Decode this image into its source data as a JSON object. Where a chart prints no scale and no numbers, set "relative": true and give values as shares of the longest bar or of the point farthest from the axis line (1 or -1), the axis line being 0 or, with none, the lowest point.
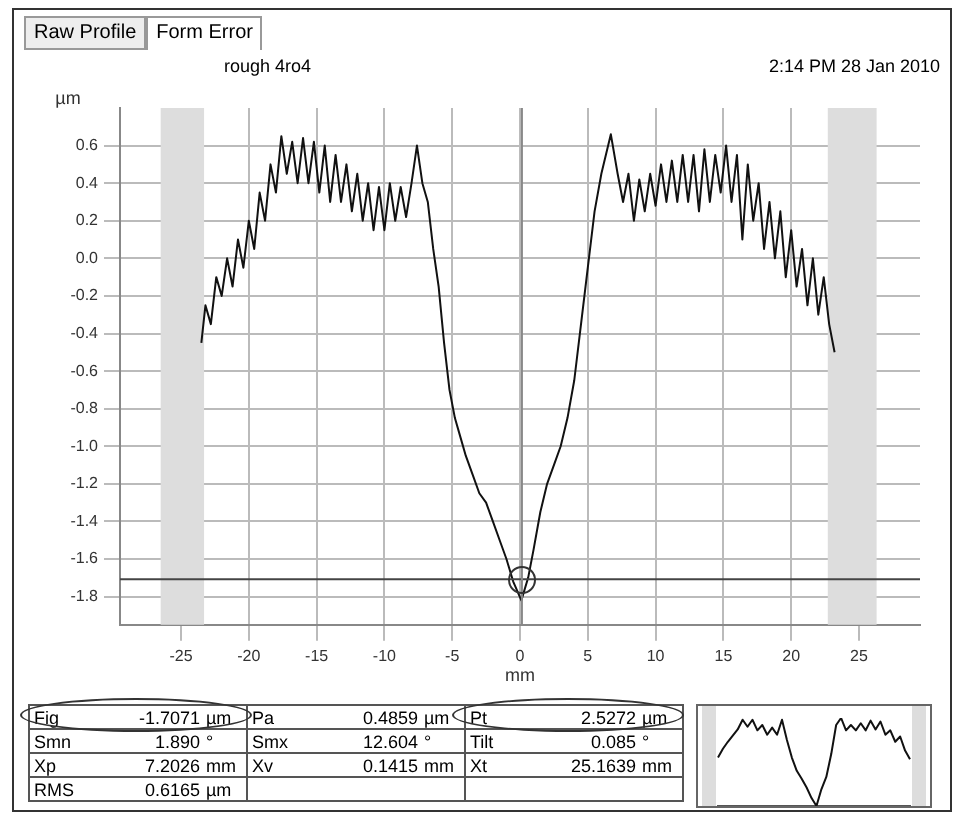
{
  "chart_data": [
    {
      "type": "other",
      "annotations": [
        "Raw Profile",
        "Form Error"
      ]
    },
    {
      "type": "line",
      "title": "rough 4ro4",
      "subtitle": "2:14 PM 28 Jan 2010",
      "xlabel": "mm",
      "ylabel": "µm",
      "x": [
        -23.5,
        -23.2,
        -22.8,
        -22.4,
        -22,
        -21.6,
        -21.2,
        -20.8,
        -20.4,
        -20,
        -19.6,
        -19.2,
        -18.8,
        -18.4,
        -18,
        -17.6,
        -17.2,
        -16.8,
        -16.4,
        -16,
        -15.6,
        -15.2,
        -14.8,
        -14.4,
        -14,
        -13.6,
        -13.2,
        -12.8,
        -12.4,
        -12,
        -11.6,
        -11.2,
        -10.8,
        -10.4,
        -10,
        -9.6,
        -9.2,
        -8.8,
        -8.4,
        -8,
        -7.6,
        -7.2,
        -6.8,
        -6.4,
        -6,
        -5.6,
        -5.2,
        -4.8,
        -4.4,
        -4,
        -3.5,
        -3,
        -2.5,
        -2,
        -1.5,
        -1,
        -0.5,
        0.1,
        0.6,
        1,
        1.5,
        2,
        2.5,
        3,
        3.5,
        4,
        4.5,
        5,
        5.5,
        6,
        6.7,
        7.2,
        7.6,
        8,
        8.4,
        8.8,
        9.2,
        9.6,
        10,
        10.4,
        10.8,
        11.2,
        11.6,
        12,
        12.4,
        12.8,
        13.2,
        13.6,
        14,
        14.4,
        14.8,
        15.2,
        15.6,
        16,
        16.4,
        16.8,
        17.2,
        17.6,
        18,
        18.4,
        18.8,
        19.2,
        19.6,
        20,
        20.4,
        20.8,
        21.2,
        21.6,
        22,
        22.4,
        22.8,
        23.2
      ],
      "series": [
        {
          "color": "#111111",
          "values": [
            -0.45,
            -0.25,
            -0.35,
            -0.1,
            -0.2,
            0.0,
            -0.15,
            0.1,
            -0.05,
            0.2,
            0.05,
            0.35,
            0.2,
            0.5,
            0.35,
            0.65,
            0.45,
            0.62,
            0.4,
            0.64,
            0.4,
            0.62,
            0.35,
            0.6,
            0.3,
            0.55,
            0.3,
            0.5,
            0.25,
            0.45,
            0.2,
            0.4,
            0.15,
            0.38,
            0.15,
            0.4,
            0.2,
            0.38,
            0.22,
            0.4,
            0.6,
            0.4,
            0.3,
            0.05,
            -0.15,
            -0.45,
            -0.7,
            -0.85,
            -0.95,
            -1.05,
            -1.15,
            -1.25,
            -1.3,
            -1.4,
            -1.5,
            -1.6,
            -1.72,
            -1.82,
            -1.7,
            -1.55,
            -1.35,
            -1.2,
            -1.1,
            -1.0,
            -0.85,
            -0.65,
            -0.35,
            -0.05,
            0.25,
            0.45,
            0.66,
            0.45,
            0.3,
            0.45,
            0.2,
            0.42,
            0.25,
            0.45,
            0.28,
            0.5,
            0.3,
            0.52,
            0.3,
            0.55,
            0.3,
            0.55,
            0.25,
            0.58,
            0.3,
            0.55,
            0.35,
            0.6,
            0.3,
            0.55,
            0.1,
            0.5,
            0.2,
            0.4,
            0.05,
            0.3,
            0.0,
            0.25,
            -0.1,
            0.15,
            -0.15,
            0.05,
            -0.25,
            0.0,
            -0.3,
            -0.1,
            -0.35,
            -0.5
          ]
        }
      ],
      "xlim": [
        -29.5,
        29.5
      ],
      "xticks": [
        -25,
        -20,
        -15,
        -10,
        -5,
        0,
        5,
        10,
        15,
        20,
        25
      ],
      "ylim": [
        -1.95,
        0.8
      ],
      "yticks": [
        -1.8,
        -1.6,
        -1.4,
        -1.2,
        {
          "value": -1,
          "label": "-1.0"
        },
        -0.8,
        -0.6,
        -0.4,
        -0.2,
        {
          "value": 0,
          "label": "0.0"
        },
        0.2,
        0.4,
        0.6
      ],
      "grid": true,
      "legend": false,
      "marker": "none",
      "line_style": "solid",
      "ref_lines": [
        {
          "axis": "y",
          "value": -1.7071,
          "color": "#444444"
        },
        {
          "axis": "x",
          "value": 0.1415,
          "color": "#888888"
        }
      ],
      "bands": [
        {
          "axis": "x",
          "from": -26.5,
          "to": -23.3,
          "color": "#dddddd"
        },
        {
          "axis": "x",
          "from": 22.7,
          "to": 26.3,
          "color": "#dddddd"
        }
      ]
    },
    {
      "type": "line",
      "relative": true,
      "marker": "none",
      "line_style": "solid",
      "categories": [
        null,
        null,
        null,
        null,
        null,
        null,
        null,
        null,
        null,
        null,
        null,
        null,
        null,
        null,
        null,
        null,
        null,
        null,
        null,
        null,
        null,
        null,
        null,
        null,
        null,
        null,
        null,
        null,
        null,
        null,
        null,
        null,
        null,
        null,
        null,
        null,
        null,
        null,
        null,
        null
      ],
      "series": [
        {
          "color": "#111111",
          "values": [
            0.55,
            0.65,
            0.73,
            0.8,
            0.87,
            0.98,
            0.9,
            0.98,
            0.86,
            0.92,
            0.81,
            0.89,
            0.81,
            0.98,
            0.75,
            0.55,
            0.4,
            0.31,
            0.21,
            0.09,
            0,
            0.19,
            0.33,
            0.59,
            0.92,
            1,
            0.86,
            0.92,
            0.86,
            0.94,
            0.86,
            0.97,
            0.87,
            0.96,
            0.81,
            0.86,
            0.73,
            0.79,
            0.63,
            0.53
          ]
        }
      ]
    },
    {
      "type": "other",
      "annotations": [
        "Fig",
        "-1.7071",
        "µm",
        "Pa",
        "0.4859",
        "µm",
        "Pt",
        "2.5272",
        "µm",
        "Smn",
        "1.890",
        "°",
        "Smx",
        "12.604",
        "°",
        "Tilt",
        "0.085",
        "°",
        "Xp",
        "7.2026",
        "mm",
        "Xv",
        "0.1415",
        "mm",
        "Xt",
        "25.1639",
        "mm",
        "RMS",
        "0.6165",
        "µm"
      ]
    }
  ]
}
